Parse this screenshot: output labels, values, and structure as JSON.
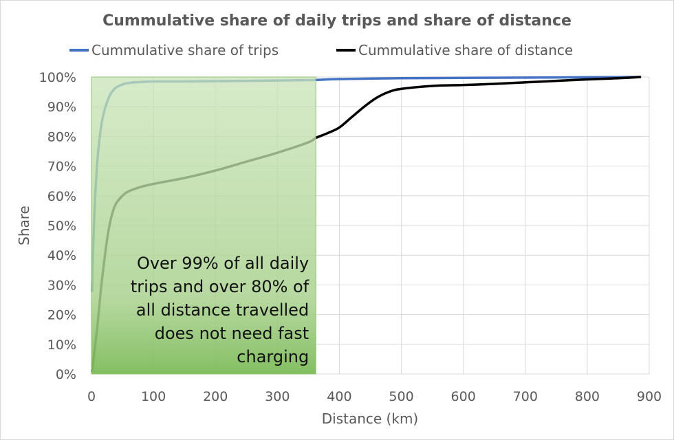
{
  "chart_data": {
    "type": "line",
    "title": "Cummulative share of daily trips and share of distance",
    "xlabel": "Distance (km)",
    "ylabel": "Share",
    "xlim": [
      0,
      900
    ],
    "ylim": [
      0,
      100
    ],
    "x_ticks": [
      0,
      100,
      200,
      300,
      400,
      500,
      600,
      700,
      800,
      900
    ],
    "y_ticks": [
      "0%",
      "10%",
      "20%",
      "30%",
      "40%",
      "50%",
      "60%",
      "70%",
      "80%",
      "90%",
      "100%"
    ],
    "y_tick_values": [
      0,
      10,
      20,
      30,
      40,
      50,
      60,
      70,
      80,
      90,
      100
    ],
    "grid": true,
    "legend_position": "top",
    "series": [
      {
        "name": "Cummulative share of trips",
        "color": "#4472c4",
        "x": [
          1,
          2,
          4,
          6,
          8,
          10,
          13,
          16,
          20,
          25,
          30,
          35,
          40,
          50,
          60,
          80,
          100,
          150,
          200,
          300,
          360,
          400,
          500,
          600,
          700,
          800,
          885
        ],
        "y": [
          28,
          38,
          50,
          60,
          67,
          73,
          79,
          84,
          88,
          91.5,
          94,
          95.5,
          96.5,
          97.5,
          98,
          98.3,
          98.5,
          98.5,
          98.6,
          98.8,
          99,
          99.3,
          99.6,
          99.7,
          99.8,
          99.9,
          100
        ]
      },
      {
        "name": "Cummulative share of distance",
        "color": "#000000",
        "x": [
          1,
          5,
          10,
          15,
          20,
          25,
          30,
          35,
          40,
          50,
          60,
          80,
          100,
          150,
          200,
          250,
          300,
          350,
          362,
          380,
          400,
          420,
          440,
          460,
          480,
          500,
          550,
          600,
          650,
          700,
          750,
          800,
          850,
          885
        ],
        "y": [
          1,
          8,
          17,
          28,
          37,
          45,
          51,
          55,
          57.5,
          60,
          61.5,
          63,
          64,
          66,
          68.5,
          71.5,
          74.5,
          78,
          79.5,
          81,
          83,
          86.5,
          90,
          93,
          95,
          96,
          97,
          97.3,
          97.7,
          98.2,
          98.7,
          99.2,
          99.6,
          100
        ]
      }
    ],
    "highlight_region": {
      "x_start": 0,
      "x_end": 362,
      "y_start": 0,
      "y_end": 100,
      "color": "#a9d18e"
    },
    "annotation": {
      "lines": [
        "Over 99% of all daily",
        "trips and over 80% of",
        "all distance travelled",
        "does not need fast",
        "charging"
      ]
    }
  }
}
